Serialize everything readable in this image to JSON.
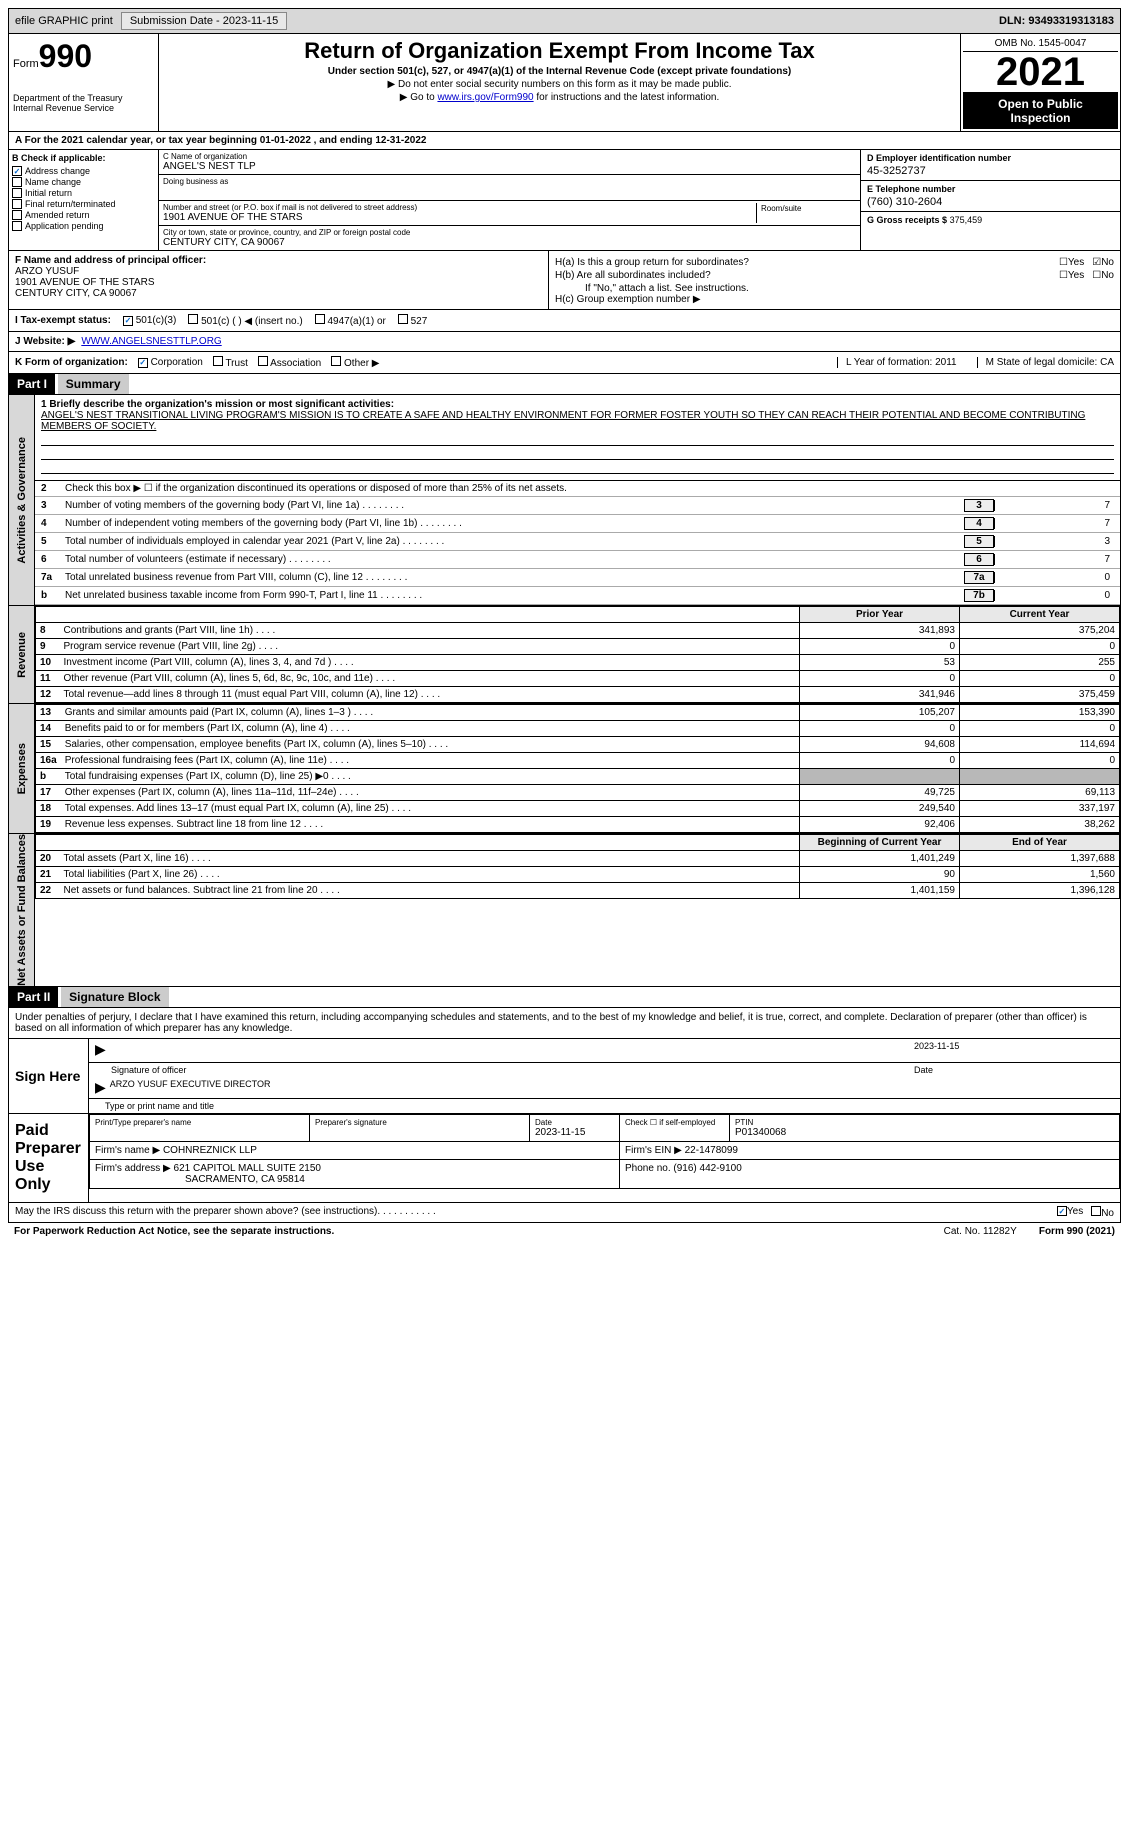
{
  "topbar": {
    "efile": "efile GRAPHIC print",
    "submission": "Submission Date - 2023-11-15",
    "dln": "DLN: 93493319313183"
  },
  "header": {
    "form_prefix": "Form",
    "form_num": "990",
    "dept": "Department of the Treasury",
    "irs": "Internal Revenue Service",
    "title": "Return of Organization Exempt From Income Tax",
    "subtitle": "Under section 501(c), 527, or 4947(a)(1) of the Internal Revenue Code (except private foundations)",
    "note1": "▶ Do not enter social security numbers on this form as it may be made public.",
    "note2_pre": "▶ Go to ",
    "note2_link": "www.irs.gov/Form990",
    "note2_post": " for instructions and the latest information.",
    "omb": "OMB No. 1545-0047",
    "year": "2021",
    "inspect": "Open to Public Inspection"
  },
  "line_a": "A For the 2021 calendar year, or tax year beginning 01-01-2022   , and ending 12-31-2022",
  "checks": {
    "hdr": "B Check if applicable:",
    "items": [
      {
        "label": "Address change",
        "checked": true
      },
      {
        "label": "Name change",
        "checked": false
      },
      {
        "label": "Initial return",
        "checked": false
      },
      {
        "label": "Final return/terminated",
        "checked": false
      },
      {
        "label": "Amended return",
        "checked": false
      },
      {
        "label": "Application pending",
        "checked": false
      }
    ]
  },
  "org": {
    "c_lbl": "C Name of organization",
    "name": "ANGEL'S NEST TLP",
    "dba_lbl": "Doing business as",
    "dba": "",
    "addr_lbl": "Number and street (or P.O. box if mail is not delivered to street address)",
    "room_lbl": "Room/suite",
    "addr": "1901 AVENUE OF THE STARS",
    "city_lbl": "City or town, state or province, country, and ZIP or foreign postal code",
    "city": "CENTURY CITY, CA  90067"
  },
  "col_d": {
    "ein_lbl": "D Employer identification number",
    "ein": "45-3252737",
    "tel_lbl": "E Telephone number",
    "tel": "(760) 310-2604",
    "gross_lbl": "G Gross receipts $",
    "gross": "375,459"
  },
  "block_f": {
    "lbl": "F Name and address of principal officer:",
    "name": "ARZO YUSUF",
    "addr1": "1901 AVENUE OF THE STARS",
    "addr2": "CENTURY CITY, CA  90067",
    "ha": "H(a)  Is this a group return for subordinates?",
    "hb": "H(b)  Are all subordinates included?",
    "hb_note": "If \"No,\" attach a list. See instructions.",
    "hc": "H(c)  Group exemption number ▶",
    "yes": "Yes",
    "no": "No"
  },
  "status": {
    "lbl": "I  Tax-exempt status:",
    "opts": [
      "501(c)(3)",
      "501(c) (  ) ◀ (insert no.)",
      "4947(a)(1) or",
      "527"
    ],
    "checked": 0
  },
  "website": {
    "lbl": "J  Website: ▶",
    "url": "WWW.ANGELSNESTTLP.ORG"
  },
  "k_row": {
    "lbl": "K Form of organization:",
    "opts": [
      "Corporation",
      "Trust",
      "Association",
      "Other ▶"
    ],
    "checked": 0,
    "l": "L Year of formation: 2011",
    "m": "M State of legal domicile: CA"
  },
  "part1": {
    "part": "Part I",
    "title": "Summary",
    "side_gov": "Activities & Governance",
    "side_rev": "Revenue",
    "side_exp": "Expenses",
    "side_net": "Net Assets or Fund Balances",
    "mission_lbl": "1  Briefly describe the organization's mission or most significant activities:",
    "mission": "ANGEL'S NEST TRANSITIONAL LIVING PROGRAM'S MISSION IS TO CREATE A SAFE AND HEALTHY ENVIRONMENT FOR FORMER FOSTER YOUTH SO THEY CAN REACH THEIR POTENTIAL AND BECOME CONTRIBUTING MEMBERS OF SOCIETY.",
    "line2": "Check this box ▶ ☐ if the organization discontinued its operations or disposed of more than 25% of its net assets.",
    "gov_lines": [
      {
        "n": "3",
        "t": "Number of voting members of the governing body (Part VI, line 1a)",
        "box": "3",
        "v": "7"
      },
      {
        "n": "4",
        "t": "Number of independent voting members of the governing body (Part VI, line 1b)",
        "box": "4",
        "v": "7"
      },
      {
        "n": "5",
        "t": "Total number of individuals employed in calendar year 2021 (Part V, line 2a)",
        "box": "5",
        "v": "3"
      },
      {
        "n": "6",
        "t": "Total number of volunteers (estimate if necessary)",
        "box": "6",
        "v": "7"
      },
      {
        "n": "7a",
        "t": "Total unrelated business revenue from Part VIII, column (C), line 12",
        "box": "7a",
        "v": "0"
      },
      {
        "n": "b",
        "t": "Net unrelated business taxable income from Form 990-T, Part I, line 11",
        "box": "7b",
        "v": "0"
      }
    ],
    "col_prior": "Prior Year",
    "col_current": "Current Year",
    "rev_lines": [
      {
        "n": "8",
        "t": "Contributions and grants (Part VIII, line 1h)",
        "p": "341,893",
        "c": "375,204"
      },
      {
        "n": "9",
        "t": "Program service revenue (Part VIII, line 2g)",
        "p": "0",
        "c": "0"
      },
      {
        "n": "10",
        "t": "Investment income (Part VIII, column (A), lines 3, 4, and 7d )",
        "p": "53",
        "c": "255"
      },
      {
        "n": "11",
        "t": "Other revenue (Part VIII, column (A), lines 5, 6d, 8c, 9c, 10c, and 11e)",
        "p": "0",
        "c": "0"
      },
      {
        "n": "12",
        "t": "Total revenue—add lines 8 through 11 (must equal Part VIII, column (A), line 12)",
        "p": "341,946",
        "c": "375,459"
      }
    ],
    "exp_lines": [
      {
        "n": "13",
        "t": "Grants and similar amounts paid (Part IX, column (A), lines 1–3 )",
        "p": "105,207",
        "c": "153,390"
      },
      {
        "n": "14",
        "t": "Benefits paid to or for members (Part IX, column (A), line 4)",
        "p": "0",
        "c": "0"
      },
      {
        "n": "15",
        "t": "Salaries, other compensation, employee benefits (Part IX, column (A), lines 5–10)",
        "p": "94,608",
        "c": "114,694"
      },
      {
        "n": "16a",
        "t": "Professional fundraising fees (Part IX, column (A), line 11e)",
        "p": "0",
        "c": "0"
      },
      {
        "n": "b",
        "t": "Total fundraising expenses (Part IX, column (D), line 25) ▶0",
        "p": "",
        "c": "",
        "gray": true
      },
      {
        "n": "17",
        "t": "Other expenses (Part IX, column (A), lines 11a–11d, 11f–24e)",
        "p": "49,725",
        "c": "69,113"
      },
      {
        "n": "18",
        "t": "Total expenses. Add lines 13–17 (must equal Part IX, column (A), line 25)",
        "p": "249,540",
        "c": "337,197"
      },
      {
        "n": "19",
        "t": "Revenue less expenses. Subtract line 18 from line 12",
        "p": "92,406",
        "c": "38,262"
      }
    ],
    "col_begin": "Beginning of Current Year",
    "col_end": "End of Year",
    "net_lines": [
      {
        "n": "20",
        "t": "Total assets (Part X, line 16)",
        "p": "1,401,249",
        "c": "1,397,688"
      },
      {
        "n": "21",
        "t": "Total liabilities (Part X, line 26)",
        "p": "90",
        "c": "1,560"
      },
      {
        "n": "22",
        "t": "Net assets or fund balances. Subtract line 21 from line 20",
        "p": "1,401,159",
        "c": "1,396,128"
      }
    ]
  },
  "part2": {
    "part": "Part II",
    "title": "Signature Block",
    "decl": "Under penalties of perjury, I declare that I have examined this return, including accompanying schedules and statements, and to the best of my knowledge and belief, it is true, correct, and complete. Declaration of preparer (other than officer) is based on all information of which preparer has any knowledge.",
    "sign_here": "Sign Here",
    "sig_officer": "Signature of officer",
    "sig_date": "2023-11-15",
    "date_lbl": "Date",
    "name_title": "ARZO YUSUF  EXECUTIVE DIRECTOR",
    "name_lbl": "Type or print name and title",
    "paid": "Paid Preparer Use Only",
    "prep_name_lbl": "Print/Type preparer's name",
    "prep_sig_lbl": "Preparer's signature",
    "prep_date_lbl": "Date",
    "prep_date": "2023-11-15",
    "self_emp": "Check ☐ if self-employed",
    "ptin_lbl": "PTIN",
    "ptin": "P01340068",
    "firm_name_lbl": "Firm's name    ▶",
    "firm_name": "COHNREZNICK LLP",
    "firm_ein_lbl": "Firm's EIN ▶",
    "firm_ein": "22-1478099",
    "firm_addr_lbl": "Firm's address ▶",
    "firm_addr1": "621 CAPITOL MALL SUITE 2150",
    "firm_addr2": "SACRAMENTO, CA  95814",
    "phone_lbl": "Phone no.",
    "phone": "(916) 442-9100"
  },
  "footer": {
    "discuss": "May the IRS discuss this return with the preparer shown above? (see instructions)",
    "yes": "Yes",
    "no": "No",
    "paperwork": "For Paperwork Reduction Act Notice, see the separate instructions.",
    "cat": "Cat. No. 11282Y",
    "form": "Form 990 (2021)"
  }
}
